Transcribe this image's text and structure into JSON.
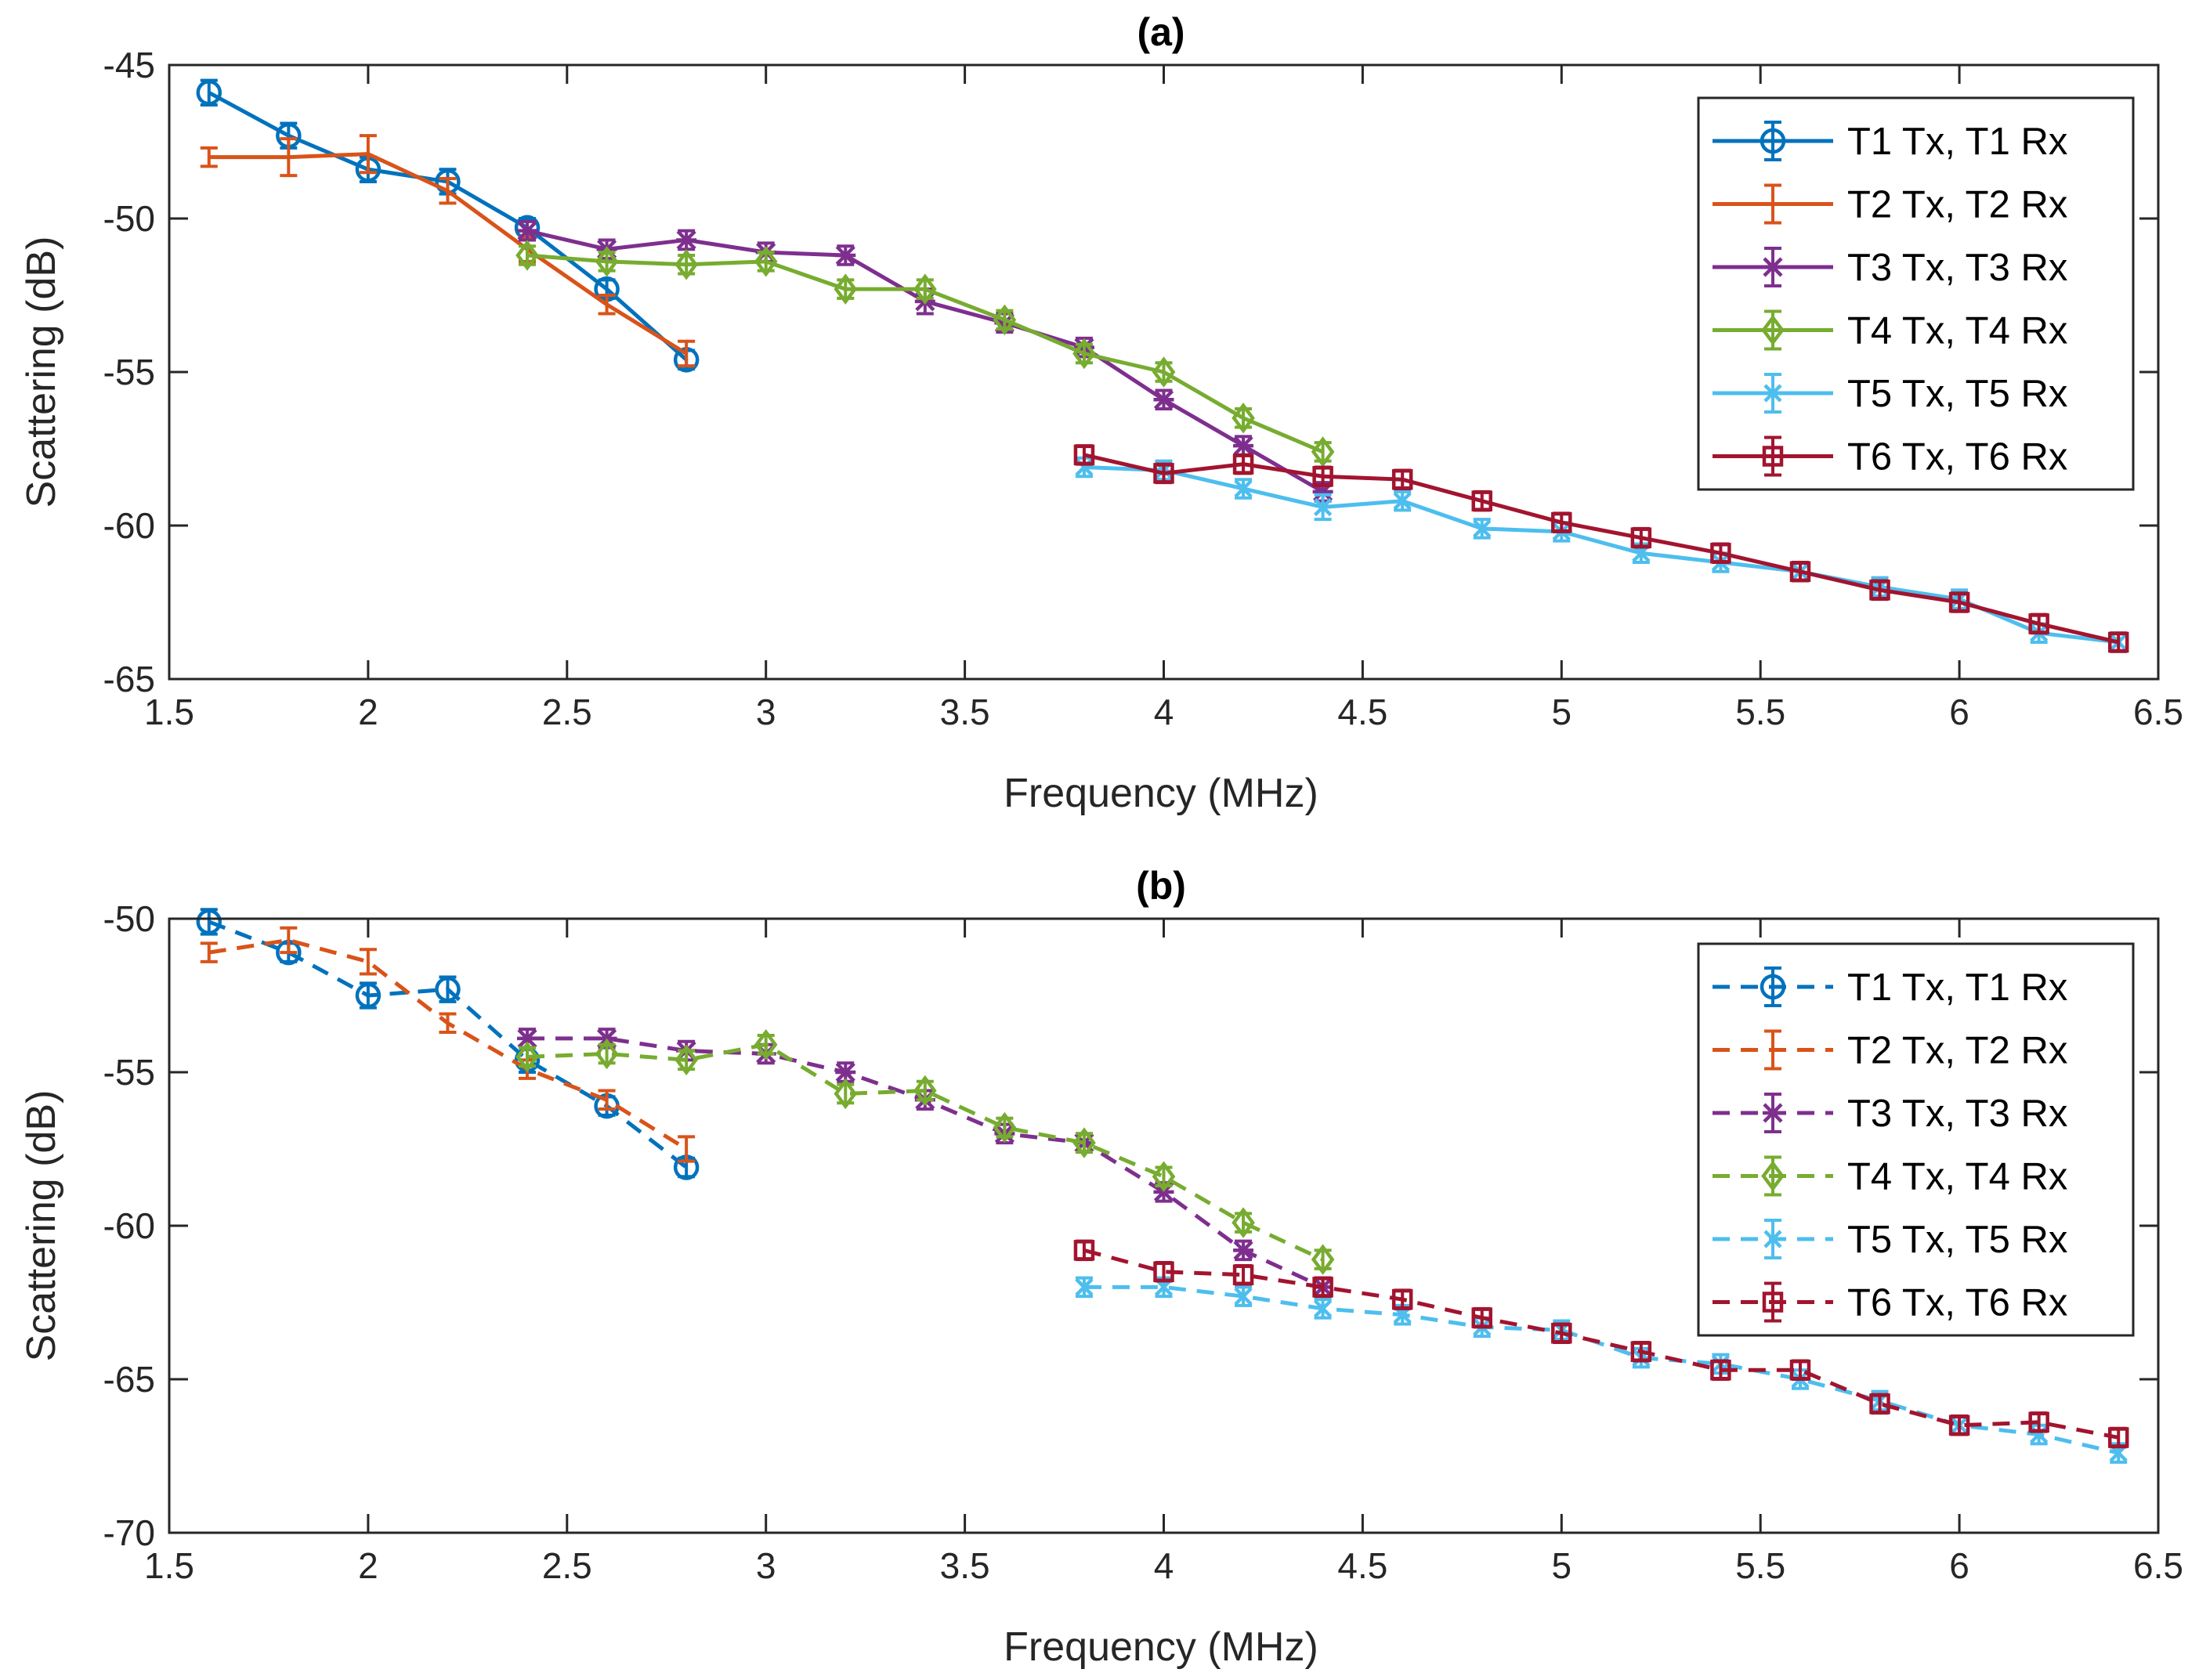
{
  "chart_data": [
    {
      "type": "line",
      "title": "(a)",
      "xlabel": "Frequency (MHz)",
      "ylabel": "Scattering (dB)",
      "xlim": [
        1.5,
        6.5
      ],
      "ylim": [
        -65,
        -45
      ],
      "xticks": [
        "1.5",
        "2",
        "2.5",
        "3",
        "3.5",
        "4",
        "4.5",
        "5",
        "5.5",
        "6",
        "6.5"
      ],
      "yticks": [
        "-45",
        "-50",
        "-55",
        "-60",
        "-65"
      ],
      "legend_position": "top-right",
      "grid": false,
      "line_style": "solid",
      "series": [
        {
          "name": "T1 Tx, T1 Rx",
          "color": "#0072BD",
          "marker": "circle",
          "x": [
            1.6,
            1.8,
            2.0,
            2.2,
            2.4,
            2.6,
            2.8
          ],
          "y": [
            -45.9,
            -47.3,
            -48.4,
            -48.8,
            -50.3,
            -52.3,
            -54.6
          ],
          "err": [
            0.4,
            0.4,
            0.4,
            0.4,
            0.3,
            0.3,
            0.3
          ]
        },
        {
          "name": "T2 Tx, T2 Rx",
          "color": "#D95319",
          "marker": "none",
          "x": [
            1.6,
            1.8,
            2.0,
            2.2,
            2.4,
            2.6,
            2.8
          ],
          "y": [
            -48.0,
            -48.0,
            -47.9,
            -49.1,
            -51.0,
            -52.8,
            -54.4
          ],
          "err": [
            0.3,
            0.6,
            0.6,
            0.4,
            0.4,
            0.3,
            0.4
          ]
        },
        {
          "name": "T3 Tx, T3 Rx",
          "color": "#7E2F8E",
          "marker": "asterisk",
          "x": [
            2.4,
            2.6,
            2.8,
            3.0,
            3.2,
            3.4,
            3.6,
            3.8,
            4.0,
            4.2,
            4.4
          ],
          "y": [
            -50.4,
            -51.0,
            -50.7,
            -51.1,
            -51.2,
            -52.7,
            -53.4,
            -54.2,
            -55.9,
            -57.4,
            -58.9
          ],
          "err": [
            0.3,
            0.3,
            0.3,
            0.3,
            0.3,
            0.4,
            0.3,
            0.3,
            0.3,
            0.3,
            0.3
          ]
        },
        {
          "name": "T4 Tx, T4 Rx",
          "color": "#77AC30",
          "marker": "diamond",
          "x": [
            2.4,
            2.6,
            2.8,
            3.0,
            3.2,
            3.4,
            3.6,
            3.8,
            4.0,
            4.2,
            4.4
          ],
          "y": [
            -51.2,
            -51.4,
            -51.5,
            -51.4,
            -52.3,
            -52.3,
            -53.3,
            -54.4,
            -55.0,
            -56.5,
            -57.6
          ],
          "err": [
            0.3,
            0.3,
            0.3,
            0.3,
            0.3,
            0.3,
            0.3,
            0.3,
            0.3,
            0.3,
            0.3
          ]
        },
        {
          "name": "T5 Tx, T5 Rx",
          "color": "#4DBEEE",
          "marker": "cross",
          "x": [
            3.8,
            4.0,
            4.2,
            4.4,
            4.6,
            4.8,
            5.0,
            5.2,
            5.4,
            5.6,
            5.8,
            6.0,
            6.2,
            6.4
          ],
          "y": [
            -58.1,
            -58.2,
            -58.8,
            -59.4,
            -59.2,
            -60.1,
            -60.2,
            -60.9,
            -61.2,
            -61.5,
            -62.0,
            -62.4,
            -63.5,
            -63.8
          ],
          "err": [
            0.3,
            0.3,
            0.3,
            0.4,
            0.3,
            0.3,
            0.3,
            0.3,
            0.3,
            0.3,
            0.3,
            0.3,
            0.3,
            0.3
          ]
        },
        {
          "name": "T6 Tx, T6 Rx",
          "color": "#A2142F",
          "marker": "square",
          "x": [
            3.8,
            4.0,
            4.2,
            4.4,
            4.6,
            4.8,
            5.0,
            5.2,
            5.4,
            5.6,
            5.8,
            6.0,
            6.2,
            6.4
          ],
          "y": [
            -57.7,
            -58.3,
            -58.0,
            -58.4,
            -58.5,
            -59.2,
            -59.9,
            -60.4,
            -60.9,
            -61.5,
            -62.1,
            -62.5,
            -63.2,
            -63.8
          ],
          "err": [
            0.3,
            0.3,
            0.3,
            0.3,
            0.3,
            0.3,
            0.3,
            0.3,
            0.3,
            0.3,
            0.3,
            0.3,
            0.3,
            0.3
          ]
        }
      ]
    },
    {
      "type": "line",
      "title": "(b)",
      "xlabel": "Frequency (MHz)",
      "ylabel": "Scattering (dB)",
      "xlim": [
        1.5,
        6.5
      ],
      "ylim": [
        -70,
        -50
      ],
      "xticks": [
        "1.5",
        "2",
        "2.5",
        "3",
        "3.5",
        "4",
        "4.5",
        "5",
        "5.5",
        "6",
        "6.5"
      ],
      "yticks": [
        "-50",
        "-55",
        "-60",
        "-65",
        "-70"
      ],
      "legend_position": "top-right",
      "grid": false,
      "line_style": "dashed",
      "series": [
        {
          "name": "T1 Tx, T1 Rx",
          "color": "#0072BD",
          "marker": "circle",
          "x": [
            1.6,
            1.8,
            2.0,
            2.2,
            2.4,
            2.6,
            2.8
          ],
          "y": [
            -50.1,
            -51.1,
            -52.5,
            -52.3,
            -54.6,
            -56.1,
            -58.1
          ],
          "err": [
            0.4,
            0.3,
            0.4,
            0.4,
            0.4,
            0.3,
            0.3
          ]
        },
        {
          "name": "T2 Tx, T2 Rx",
          "color": "#D95319",
          "marker": "none",
          "x": [
            1.6,
            1.8,
            2.0,
            2.2,
            2.4,
            2.6,
            2.8
          ],
          "y": [
            -51.1,
            -50.7,
            -51.4,
            -53.4,
            -54.9,
            -55.9,
            -57.5
          ],
          "err": [
            0.3,
            0.4,
            0.4,
            0.3,
            0.3,
            0.3,
            0.4
          ]
        },
        {
          "name": "T3 Tx, T3 Rx",
          "color": "#7E2F8E",
          "marker": "asterisk",
          "x": [
            2.4,
            2.6,
            2.8,
            3.0,
            3.2,
            3.4,
            3.6,
            3.8,
            4.0,
            4.2,
            4.4
          ],
          "y": [
            -53.9,
            -53.9,
            -54.3,
            -54.4,
            -55.0,
            -55.9,
            -57.0,
            -57.3,
            -58.9,
            -60.8,
            -62.0
          ],
          "err": [
            0.3,
            0.3,
            0.3,
            0.3,
            0.3,
            0.3,
            0.3,
            0.3,
            0.3,
            0.3,
            0.3
          ]
        },
        {
          "name": "T4 Tx, T4 Rx",
          "color": "#77AC30",
          "marker": "diamond",
          "x": [
            2.4,
            2.6,
            2.8,
            3.0,
            3.2,
            3.4,
            3.6,
            3.8,
            4.0,
            4.2,
            4.4
          ],
          "y": [
            -54.5,
            -54.4,
            -54.6,
            -54.1,
            -55.7,
            -55.6,
            -56.8,
            -57.3,
            -58.4,
            -59.9,
            -61.1
          ],
          "err": [
            0.3,
            0.3,
            0.3,
            0.3,
            0.3,
            0.3,
            0.3,
            0.3,
            0.3,
            0.3,
            0.3
          ]
        },
        {
          "name": "T5 Tx, T5 Rx",
          "color": "#4DBEEE",
          "marker": "cross",
          "x": [
            3.8,
            4.0,
            4.2,
            4.4,
            4.6,
            4.8,
            5.0,
            5.2,
            5.4,
            5.6,
            5.8,
            6.0,
            6.2,
            6.4
          ],
          "y": [
            -62.0,
            -62.0,
            -62.3,
            -62.7,
            -62.9,
            -63.3,
            -63.4,
            -64.3,
            -64.5,
            -65.0,
            -65.7,
            -66.5,
            -66.8,
            -67.4
          ],
          "err": [
            0.3,
            0.3,
            0.3,
            0.3,
            0.3,
            0.3,
            0.3,
            0.3,
            0.3,
            0.3,
            0.3,
            0.3,
            0.3,
            0.3
          ]
        },
        {
          "name": "T6 Tx, T6 Rx",
          "color": "#A2142F",
          "marker": "square",
          "x": [
            3.8,
            4.0,
            4.2,
            4.4,
            4.6,
            4.8,
            5.0,
            5.2,
            5.4,
            5.6,
            5.8,
            6.0,
            6.2,
            6.4
          ],
          "y": [
            -60.8,
            -61.5,
            -61.6,
            -62.0,
            -62.4,
            -63.0,
            -63.5,
            -64.1,
            -64.7,
            -64.7,
            -65.8,
            -66.5,
            -66.4,
            -66.9
          ],
          "err": [
            0.3,
            0.3,
            0.3,
            0.3,
            0.3,
            0.3,
            0.3,
            0.3,
            0.3,
            0.3,
            0.3,
            0.3,
            0.3,
            0.3
          ]
        }
      ]
    }
  ]
}
